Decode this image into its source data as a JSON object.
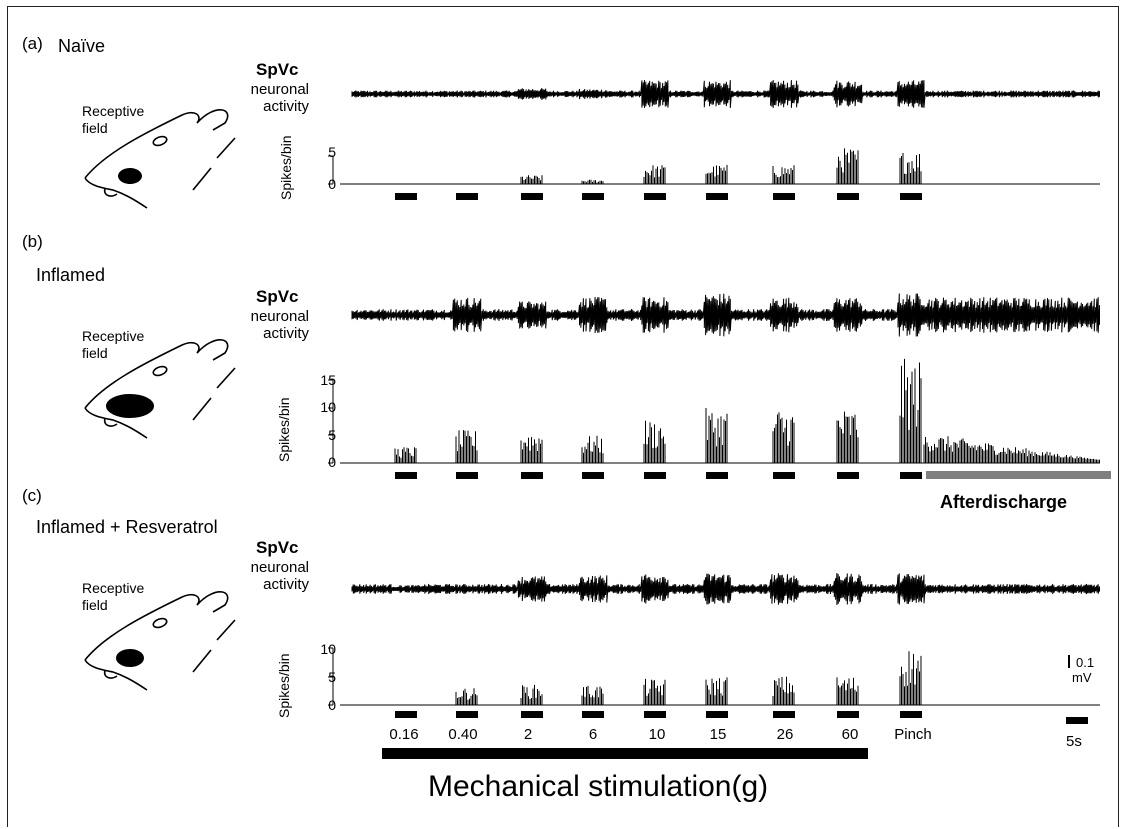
{
  "panels": [
    {
      "label": "(a)",
      "condition": "Naïve",
      "field_label": [
        "Receptive",
        "field"
      ],
      "trace_label": "SpVc",
      "trace_sublabel": [
        "neuronal",
        "activity"
      ],
      "y_axis_label": "Spikes/bin",
      "y_ticks": [
        "5",
        "0"
      ],
      "has_afterdischarge": false
    },
    {
      "label": "(b)",
      "condition": "Inflamed",
      "field_label": [
        "Receptive",
        "field"
      ],
      "trace_label": "SpVc",
      "trace_sublabel": [
        "neuronal",
        "activity"
      ],
      "y_axis_label": "Spikes/bin",
      "y_ticks": [
        "15",
        "10",
        "5",
        "0"
      ],
      "has_afterdischarge": true,
      "afterdischarge_label": "Afterdischarge"
    },
    {
      "label": "(c)",
      "condition": "Inflamed + Resveratrol",
      "field_label": [
        "Receptive",
        "field"
      ],
      "trace_label": "SpVc",
      "trace_sublabel": [
        "neuronal",
        "activity"
      ],
      "y_axis_label": "Spikes/bin",
      "y_ticks": [
        "10",
        "5",
        "0"
      ],
      "has_afterdischarge": false
    }
  ],
  "stimuli": [
    "0.16",
    "0.40",
    "2",
    "6",
    "10",
    "15",
    "26",
    "60",
    "Pinch"
  ],
  "scale_bar": {
    "voltage": [
      "0.1",
      "mV"
    ],
    "time": "5s"
  },
  "xlabel": "Mechanical stimulation(g)",
  "colors": {
    "trace": "#000000",
    "afterdischarge_bar": "#808080"
  }
}
